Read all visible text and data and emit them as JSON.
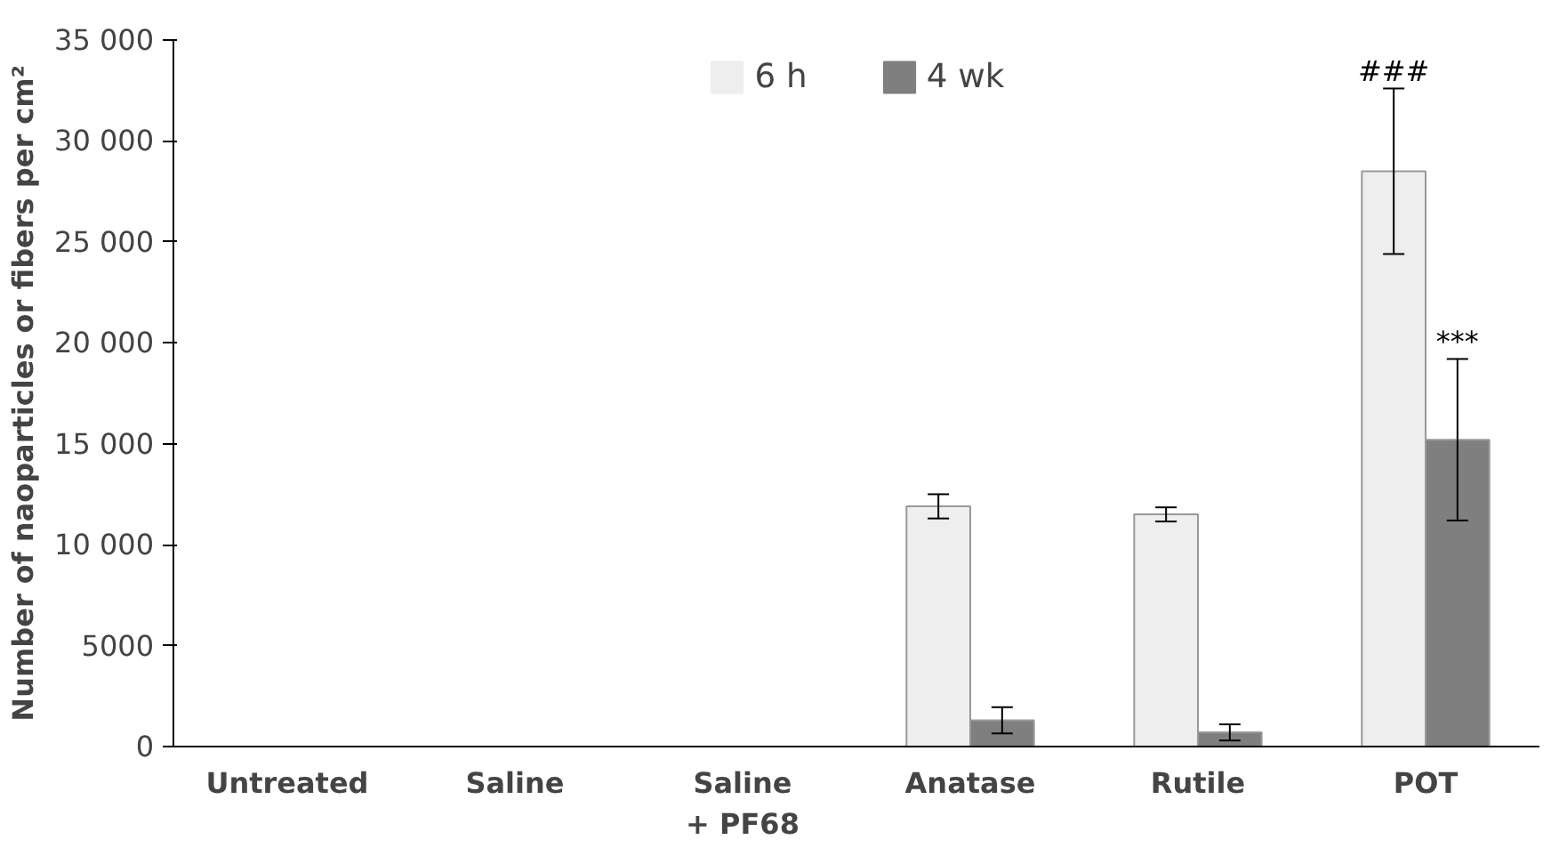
{
  "chart_data": {
    "type": "bar",
    "ylabel": "Number of naoparticles or fibers per cm²",
    "categories": [
      "Untreated",
      "Saline",
      "Saline\n+ PF68",
      "Anatase",
      "Rutile",
      "POT"
    ],
    "series": [
      {
        "name": "6 h",
        "color": "#eeeeee",
        "values": [
          0,
          0,
          0,
          11900,
          11500,
          28500
        ],
        "errors": [
          null,
          null,
          null,
          600,
          350,
          4100
        ]
      },
      {
        "name": "4 wk",
        "color": "#7f7f7f",
        "values": [
          0,
          0,
          0,
          1300,
          700,
          15200
        ],
        "errors": [
          null,
          null,
          null,
          650,
          400,
          4000
        ]
      }
    ],
    "ylim": [
      0,
      35000
    ],
    "yticks": [
      0,
      5000,
      {
        "value": 10000,
        "label": "10 000"
      },
      {
        "value": 15000,
        "label": "15 000"
      },
      {
        "value": 20000,
        "label": "20 000"
      },
      {
        "value": 25000,
        "label": "25 000"
      },
      {
        "value": 30000,
        "label": "30 000"
      },
      {
        "value": 35000,
        "label": "35 000"
      }
    ],
    "annotations": [
      {
        "text": "###",
        "x": "POT",
        "y": 28500
      },
      {
        "text": "***",
        "x": "POT",
        "y": 15200
      }
    ],
    "legend": "top",
    "grid": false
  }
}
